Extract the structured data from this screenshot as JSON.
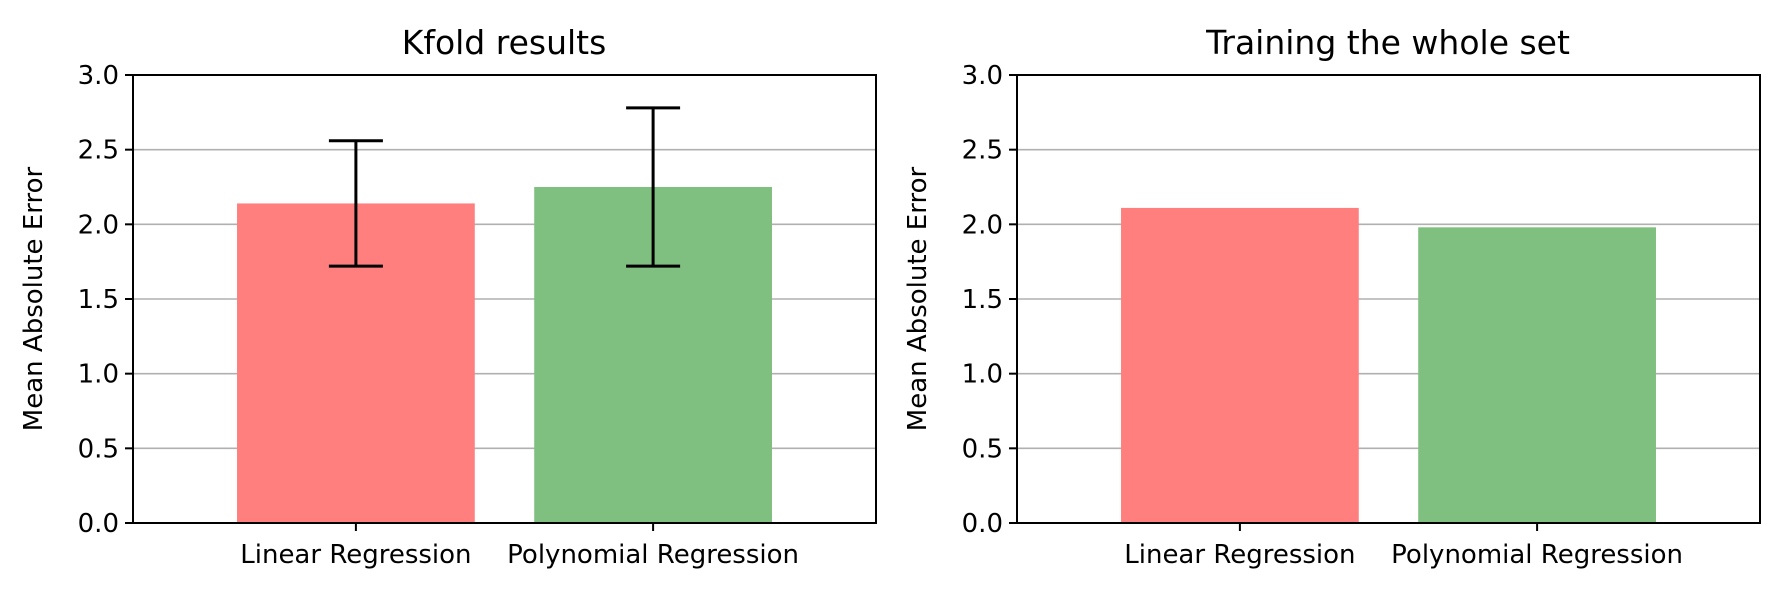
{
  "chart_data": [
    {
      "type": "bar",
      "title": "Kfold results",
      "xlabel": "",
      "ylabel": "Mean Absolute Error",
      "categories": [
        "Linear Regression",
        "Polynomial Regression"
      ],
      "values": [
        2.14,
        2.25
      ],
      "error_bars": [
        {
          "low": 1.72,
          "high": 2.56
        },
        {
          "low": 1.72,
          "high": 2.78
        }
      ],
      "colors": [
        "#ff7f7f",
        "#7fbf7f"
      ],
      "ylim": [
        0,
        3.0
      ],
      "yticks": [
        "0.0",
        "0.5",
        "1.0",
        "1.5",
        "2.0",
        "2.5",
        "3.0"
      ],
      "grid": "y"
    },
    {
      "type": "bar",
      "title": "Training the whole set",
      "xlabel": "",
      "ylabel": "Mean Absolute Error",
      "categories": [
        "Linear Regression",
        "Polynomial Regression"
      ],
      "values": [
        2.11,
        1.98
      ],
      "colors": [
        "#ff7f7f",
        "#7fbf7f"
      ],
      "ylim": [
        0,
        3.0
      ],
      "yticks": [
        "0.0",
        "0.5",
        "1.0",
        "1.5",
        "2.0",
        "2.5",
        "3.0"
      ],
      "grid": "y"
    }
  ]
}
